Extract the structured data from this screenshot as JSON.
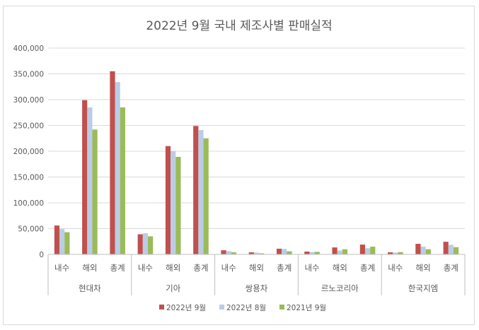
{
  "chart_data": {
    "type": "bar",
    "title": "2022년 9월 국내 제조사별 판매실적",
    "ylim": [
      0,
      400000
    ],
    "yticks": [
      "0",
      "50,000",
      "100,000",
      "150,000",
      "200,000",
      "250,000",
      "300,000",
      "350,000",
      "400,000"
    ],
    "ytick_values": [
      0,
      50000,
      100000,
      150000,
      200000,
      250000,
      300000,
      350000,
      400000
    ],
    "grid": true,
    "legend_position": "bottom",
    "groups": [
      {
        "name": "현대차",
        "categories": [
          "내수",
          "해외",
          "총계"
        ]
      },
      {
        "name": "기아",
        "categories": [
          "내수",
          "해외",
          "총계"
        ]
      },
      {
        "name": "쌍용차",
        "categories": [
          "내수",
          "해외",
          "총계"
        ]
      },
      {
        "name": "르노코리아",
        "categories": [
          "내수",
          "해외",
          "총계"
        ]
      },
      {
        "name": "한국지엠",
        "categories": [
          "내수",
          "해외",
          "총계"
        ]
      }
    ],
    "series": [
      {
        "name": "2022년 9월",
        "color": "#c0504d",
        "values": [
          56000,
          299000,
          355000,
          39000,
          210000,
          249000,
          8000,
          4000,
          11000,
          5500,
          13500,
          19000,
          4000,
          20500,
          24500
        ]
      },
      {
        "name": "2022년 8월",
        "color": "#b9cde5",
        "values": [
          49000,
          285000,
          334000,
          41000,
          200000,
          241000,
          6500,
          3500,
          10500,
          4500,
          7500,
          12000,
          3500,
          15000,
          18500
        ]
      },
      {
        "name": "2021년 9월",
        "color": "#9bbb59",
        "values": [
          43000,
          242000,
          285000,
          35000,
          189000,
          225000,
          4000,
          2000,
          6000,
          5000,
          10000,
          15000,
          4500,
          10000,
          14000
        ]
      }
    ]
  }
}
